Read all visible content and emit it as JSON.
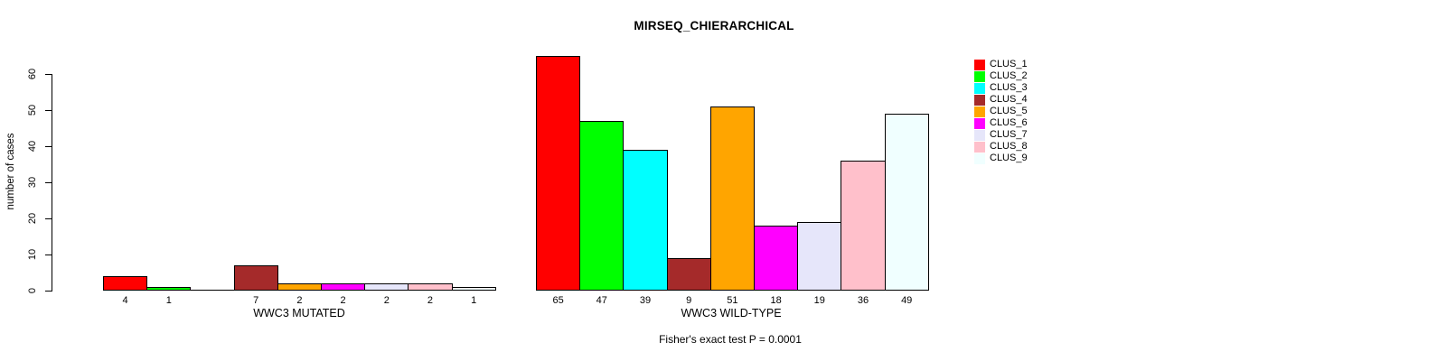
{
  "chart_data": {
    "type": "bar",
    "title": "MIRSEQ_CHIERARCHICAL",
    "ylabel": "number of cases",
    "ylim": [
      0,
      65
    ],
    "yticks": [
      0,
      10,
      20,
      30,
      40,
      50,
      60
    ],
    "grid": false,
    "legend_position": "right-outside",
    "bar_outline_color": "#000000",
    "clusters": [
      {
        "name": "CLUS_1",
        "color": "#FF0000"
      },
      {
        "name": "CLUS_2",
        "color": "#00FF00"
      },
      {
        "name": "CLUS_3",
        "color": "#00FFFF"
      },
      {
        "name": "CLUS_4",
        "color": "#A52A2A"
      },
      {
        "name": "CLUS_5",
        "color": "#FFA500"
      },
      {
        "name": "CLUS_6",
        "color": "#FF00FF"
      },
      {
        "name": "CLUS_7",
        "color": "#E6E6FA"
      },
      {
        "name": "CLUS_8",
        "color": "#FFC0CB"
      },
      {
        "name": "CLUS_9",
        "color": "#F0FFFF"
      }
    ],
    "groups": [
      {
        "label": "WWC3 MUTATED",
        "values": [
          4,
          1,
          0,
          7,
          2,
          2,
          2,
          2,
          1
        ]
      },
      {
        "label": "WWC3 WILD-TYPE",
        "values": [
          65,
          47,
          39,
          9,
          51,
          18,
          19,
          36,
          49
        ]
      }
    ],
    "footnote": "Fisher's exact test P = 0.0001"
  }
}
